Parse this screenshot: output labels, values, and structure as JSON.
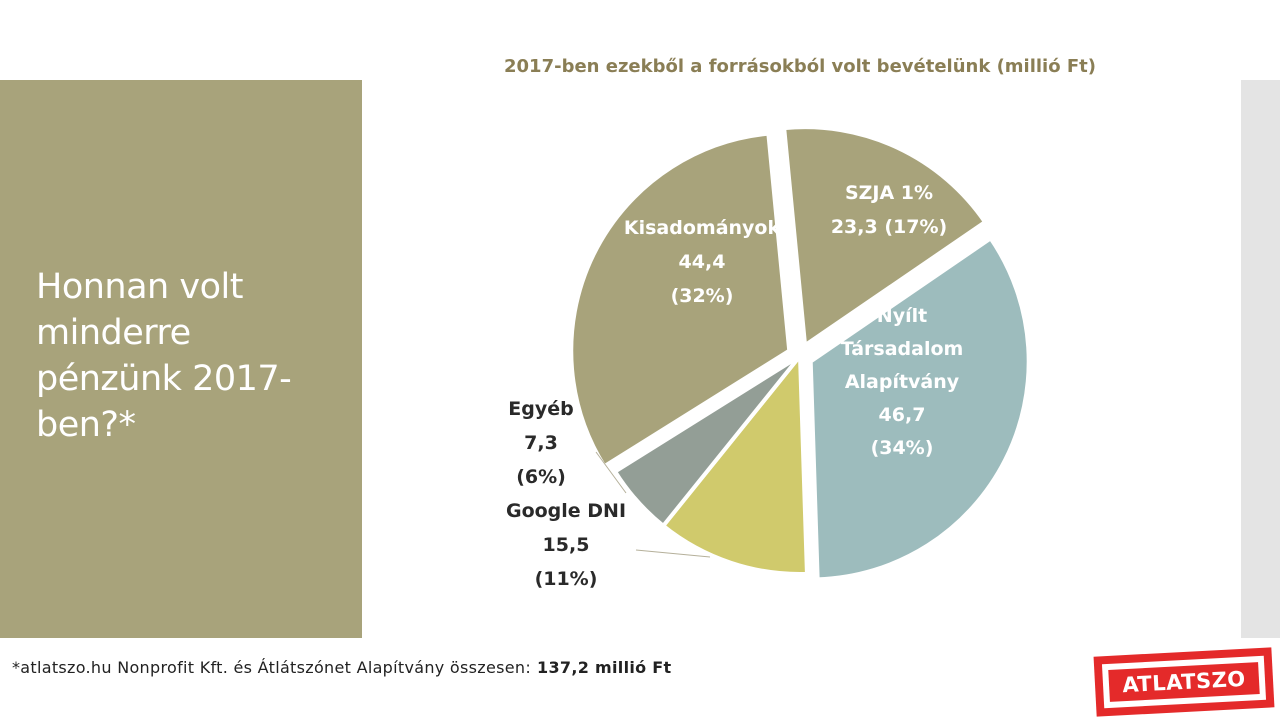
{
  "slide": {
    "heading": "Honnan volt minderre pénzünk 2017-ben?*",
    "footnote_text": "*atlatszo.hu Nonprofit Kft. és Átlátszónet Alapítvány összesen:",
    "footnote_total": "137,2 millió Ft",
    "logo_text": "ATLATSZO"
  },
  "colors": {
    "panel": "#a8a37b",
    "title": "#8a7e55",
    "szja": "#a8a37b",
    "kisadomanyok": "#a8a37b",
    "osa": "#9dbcbd",
    "google": "#d0ca6c",
    "egyeb": "#939e96",
    "logo": "#e42a2a"
  },
  "chart_data": {
    "type": "pie",
    "title": "2017-ben ezekből a forrásokból volt bevételünk (millió Ft)",
    "slices": [
      {
        "name": "SZJA 1%",
        "value": 23.3,
        "value_label": "23,3 (17%)",
        "percent": "17%",
        "color": "#a8a37b",
        "exploded": true
      },
      {
        "name": "Nyílt Társadalom Alapítvány",
        "value": 46.7,
        "value_label": "46,7",
        "percent": "(34%)",
        "color": "#9dbcbd",
        "exploded": true
      },
      {
        "name": "Google DNI",
        "value": 15.5,
        "value_label": "15,5",
        "percent": "(11%)",
        "color": "#d0ca6c",
        "exploded": false
      },
      {
        "name": "Egyéb",
        "value": 7.3,
        "value_label": "7,3",
        "percent": "(6%)",
        "color": "#939e96",
        "exploded": false
      },
      {
        "name": "Kisadományok",
        "value": 44.4,
        "value_label": "44,4",
        "percent": "(32%)",
        "color": "#a8a37b",
        "exploded": true
      }
    ]
  }
}
